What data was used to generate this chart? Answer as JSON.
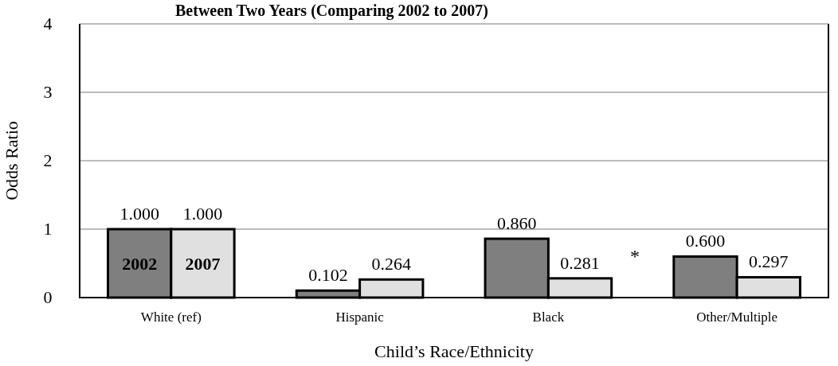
{
  "chart_data": {
    "type": "bar",
    "title": "Between Two Years (Comparing 2002 to 2007)",
    "xlabel": "Child’s Race/Ethnicity",
    "ylabel": "Odds Ratio",
    "categories": [
      "White (ref)",
      "Hispanic",
      "Black",
      "Other/Multiple"
    ],
    "series": [
      {
        "name": "2002",
        "color": "#7f7f7f",
        "values": [
          1.0,
          0.102,
          0.86,
          0.6
        ]
      },
      {
        "name": "2007",
        "color": "#e0e0e0",
        "values": [
          1.0,
          0.264,
          0.281,
          0.297
        ]
      }
    ],
    "value_labels": [
      [
        "1.000",
        "0.102",
        "0.860",
        "0.600"
      ],
      [
        "1.000",
        "0.264",
        "0.281",
        "0.297"
      ]
    ],
    "annotations": [
      "*"
    ],
    "ylim": [
      0,
      4
    ],
    "yticks": [
      0,
      1,
      2,
      3,
      4
    ],
    "grid": "y"
  }
}
